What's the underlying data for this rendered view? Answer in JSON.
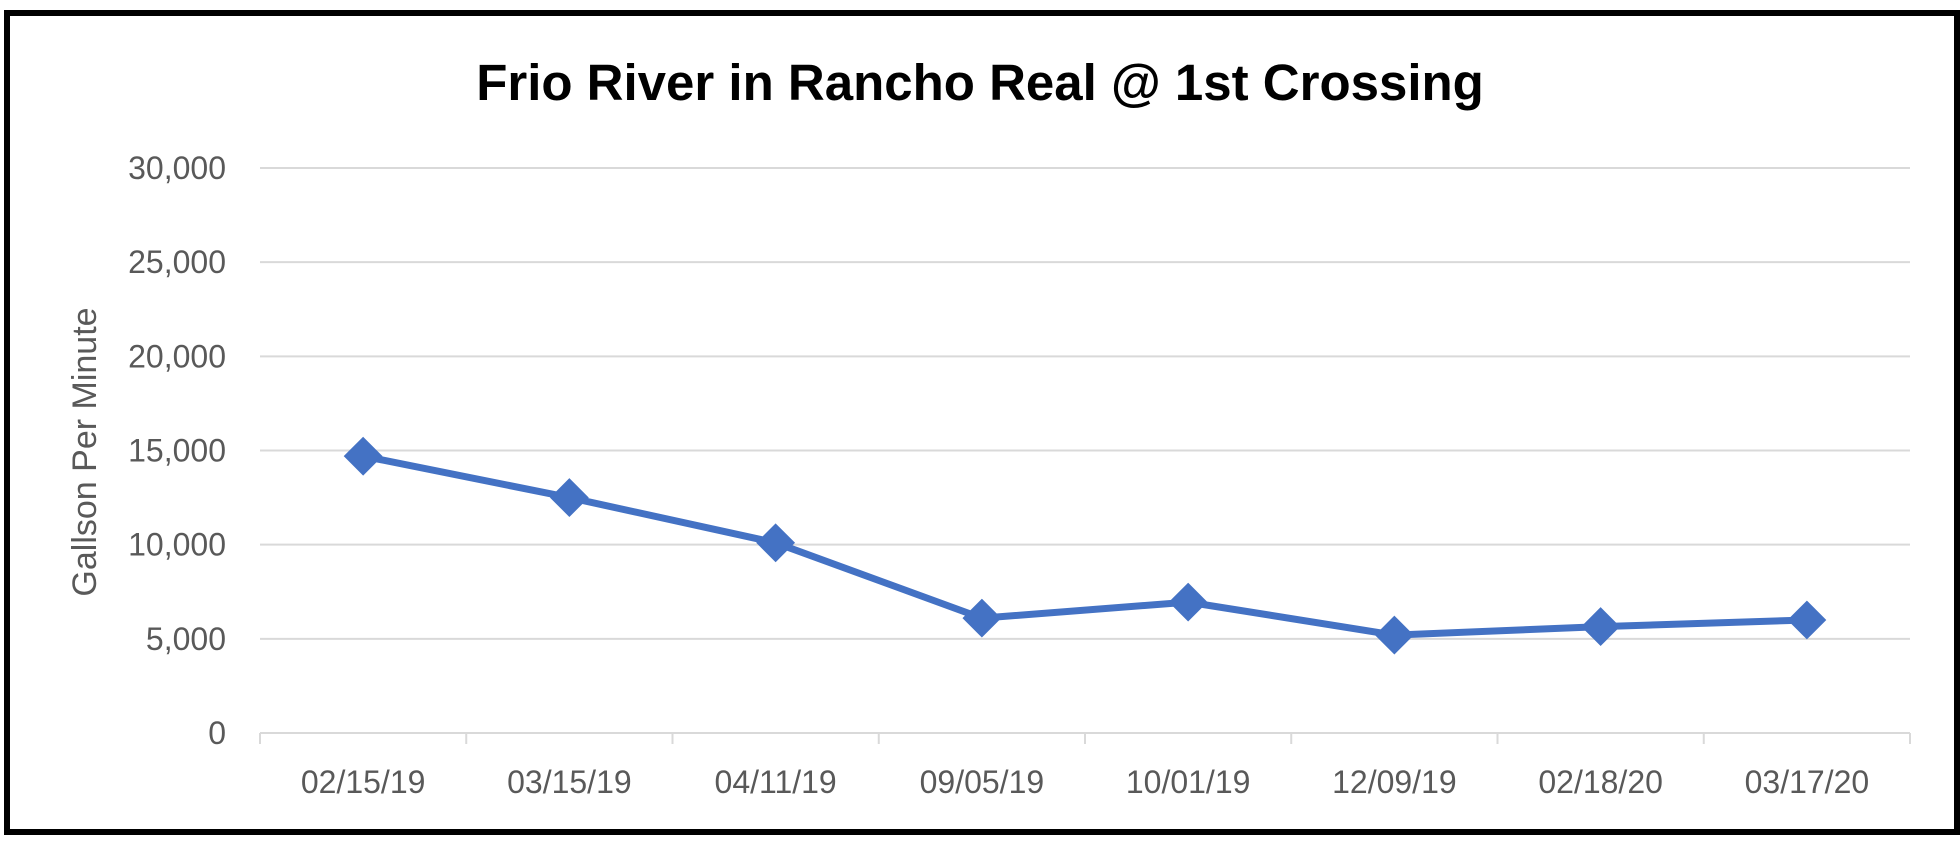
{
  "chart_data": {
    "type": "line",
    "title": "Frio River in Rancho Real @ 1st Crossing",
    "xlabel": "",
    "ylabel": "Gallson Per Minute",
    "categories": [
      "02/15/19",
      "03/15/19",
      "04/11/19",
      "09/05/19",
      "10/01/19",
      "12/09/19",
      "02/18/20",
      "03/17/20"
    ],
    "series": [
      {
        "values": [
          14700,
          12500,
          10100,
          6100,
          6950,
          5200,
          5650,
          6000
        ],
        "color": "#4472C4",
        "marker": "diamond"
      }
    ],
    "ylim": [
      0,
      30000
    ],
    "yticks": [
      0,
      5000,
      10000,
      15000,
      20000,
      25000,
      30000
    ],
    "ytick_labels": [
      "0",
      "5,000",
      "10,000",
      "15,000",
      "20,000",
      "25,000",
      "30,000"
    ],
    "grid": true,
    "gridline_color": "#D9D9D9",
    "legend": "none"
  }
}
